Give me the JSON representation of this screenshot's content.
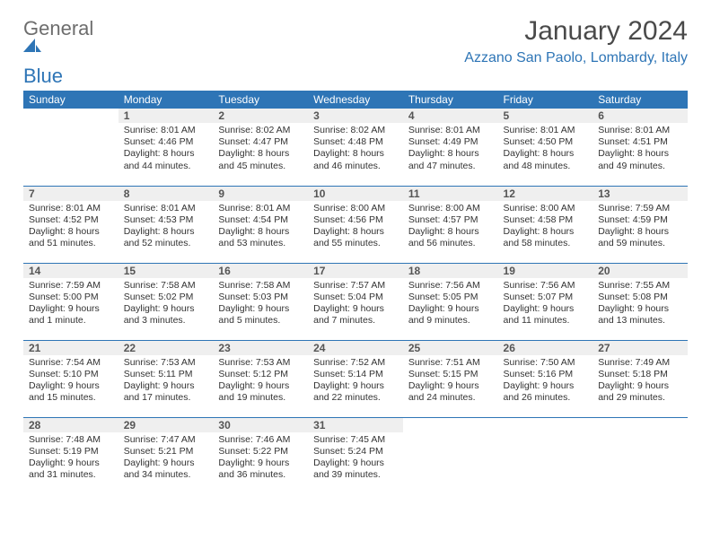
{
  "logo": {
    "general": "General",
    "blue": "Blue"
  },
  "title": "January 2024",
  "location": "Azzano San Paolo, Lombardy, Italy",
  "colors": {
    "brand": "#2e75b6",
    "header_text": "#ffffff",
    "daynum_bg": "#efefef",
    "body_text": "#333333",
    "logo_gray": "#6d6d6d"
  },
  "weekdays": [
    "Sunday",
    "Monday",
    "Tuesday",
    "Wednesday",
    "Thursday",
    "Friday",
    "Saturday"
  ],
  "start_offset": 1,
  "days": [
    {
      "n": 1,
      "sunrise": "8:01 AM",
      "sunset": "4:46 PM",
      "daylight": "8 hours and 44 minutes."
    },
    {
      "n": 2,
      "sunrise": "8:02 AM",
      "sunset": "4:47 PM",
      "daylight": "8 hours and 45 minutes."
    },
    {
      "n": 3,
      "sunrise": "8:02 AM",
      "sunset": "4:48 PM",
      "daylight": "8 hours and 46 minutes."
    },
    {
      "n": 4,
      "sunrise": "8:01 AM",
      "sunset": "4:49 PM",
      "daylight": "8 hours and 47 minutes."
    },
    {
      "n": 5,
      "sunrise": "8:01 AM",
      "sunset": "4:50 PM",
      "daylight": "8 hours and 48 minutes."
    },
    {
      "n": 6,
      "sunrise": "8:01 AM",
      "sunset": "4:51 PM",
      "daylight": "8 hours and 49 minutes."
    },
    {
      "n": 7,
      "sunrise": "8:01 AM",
      "sunset": "4:52 PM",
      "daylight": "8 hours and 51 minutes."
    },
    {
      "n": 8,
      "sunrise": "8:01 AM",
      "sunset": "4:53 PM",
      "daylight": "8 hours and 52 minutes."
    },
    {
      "n": 9,
      "sunrise": "8:01 AM",
      "sunset": "4:54 PM",
      "daylight": "8 hours and 53 minutes."
    },
    {
      "n": 10,
      "sunrise": "8:00 AM",
      "sunset": "4:56 PM",
      "daylight": "8 hours and 55 minutes."
    },
    {
      "n": 11,
      "sunrise": "8:00 AM",
      "sunset": "4:57 PM",
      "daylight": "8 hours and 56 minutes."
    },
    {
      "n": 12,
      "sunrise": "8:00 AM",
      "sunset": "4:58 PM",
      "daylight": "8 hours and 58 minutes."
    },
    {
      "n": 13,
      "sunrise": "7:59 AM",
      "sunset": "4:59 PM",
      "daylight": "8 hours and 59 minutes."
    },
    {
      "n": 14,
      "sunrise": "7:59 AM",
      "sunset": "5:00 PM",
      "daylight": "9 hours and 1 minute."
    },
    {
      "n": 15,
      "sunrise": "7:58 AM",
      "sunset": "5:02 PM",
      "daylight": "9 hours and 3 minutes."
    },
    {
      "n": 16,
      "sunrise": "7:58 AM",
      "sunset": "5:03 PM",
      "daylight": "9 hours and 5 minutes."
    },
    {
      "n": 17,
      "sunrise": "7:57 AM",
      "sunset": "5:04 PM",
      "daylight": "9 hours and 7 minutes."
    },
    {
      "n": 18,
      "sunrise": "7:56 AM",
      "sunset": "5:05 PM",
      "daylight": "9 hours and 9 minutes."
    },
    {
      "n": 19,
      "sunrise": "7:56 AM",
      "sunset": "5:07 PM",
      "daylight": "9 hours and 11 minutes."
    },
    {
      "n": 20,
      "sunrise": "7:55 AM",
      "sunset": "5:08 PM",
      "daylight": "9 hours and 13 minutes."
    },
    {
      "n": 21,
      "sunrise": "7:54 AM",
      "sunset": "5:10 PM",
      "daylight": "9 hours and 15 minutes."
    },
    {
      "n": 22,
      "sunrise": "7:53 AM",
      "sunset": "5:11 PM",
      "daylight": "9 hours and 17 minutes."
    },
    {
      "n": 23,
      "sunrise": "7:53 AM",
      "sunset": "5:12 PM",
      "daylight": "9 hours and 19 minutes."
    },
    {
      "n": 24,
      "sunrise": "7:52 AM",
      "sunset": "5:14 PM",
      "daylight": "9 hours and 22 minutes."
    },
    {
      "n": 25,
      "sunrise": "7:51 AM",
      "sunset": "5:15 PM",
      "daylight": "9 hours and 24 minutes."
    },
    {
      "n": 26,
      "sunrise": "7:50 AM",
      "sunset": "5:16 PM",
      "daylight": "9 hours and 26 minutes."
    },
    {
      "n": 27,
      "sunrise": "7:49 AM",
      "sunset": "5:18 PM",
      "daylight": "9 hours and 29 minutes."
    },
    {
      "n": 28,
      "sunrise": "7:48 AM",
      "sunset": "5:19 PM",
      "daylight": "9 hours and 31 minutes."
    },
    {
      "n": 29,
      "sunrise": "7:47 AM",
      "sunset": "5:21 PM",
      "daylight": "9 hours and 34 minutes."
    },
    {
      "n": 30,
      "sunrise": "7:46 AM",
      "sunset": "5:22 PM",
      "daylight": "9 hours and 36 minutes."
    },
    {
      "n": 31,
      "sunrise": "7:45 AM",
      "sunset": "5:24 PM",
      "daylight": "9 hours and 39 minutes."
    }
  ],
  "labels": {
    "sunrise": "Sunrise:",
    "sunset": "Sunset:",
    "daylight": "Daylight:"
  }
}
